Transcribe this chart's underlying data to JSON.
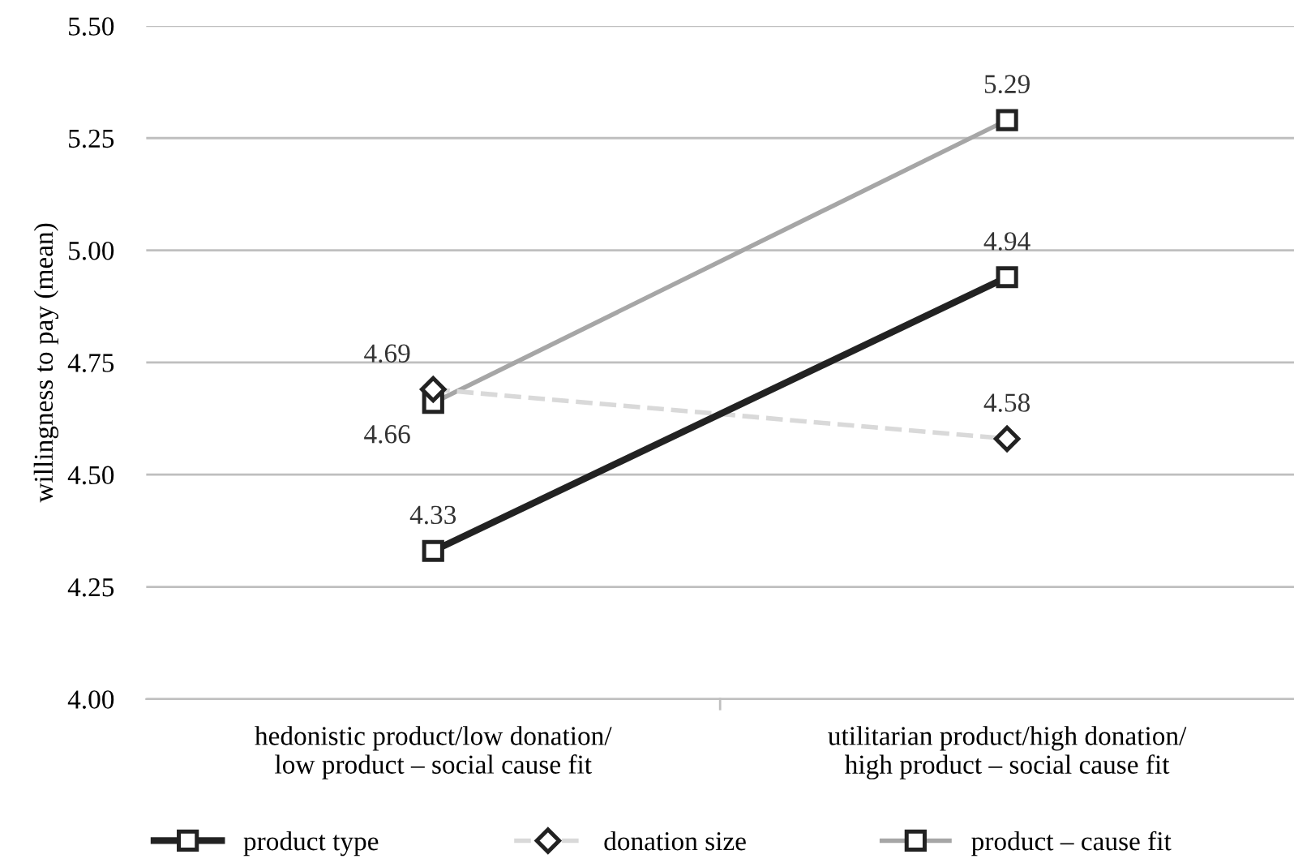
{
  "chart_data": {
    "type": "line",
    "ylabel": "willingness to pay (mean)",
    "categories": [
      "hedonistic product/low donation/\nlow product – social cause fit",
      "utilitarian product/high donation/\nhigh product – social cause fit"
    ],
    "series": [
      {
        "name": "product type",
        "color": "#222222",
        "values": [
          4.33,
          4.94
        ],
        "marker": "square",
        "line_style": "solid"
      },
      {
        "name": "donation size",
        "color": "#d9d9d9",
        "values": [
          4.69,
          4.58
        ],
        "marker": "diamond",
        "line_style": "dashed"
      },
      {
        "name": "product – cause fit",
        "color": "#a6a6a6",
        "values": [
          4.66,
          5.29
        ],
        "marker": "square",
        "line_style": "solid"
      }
    ],
    "ylim": [
      4.0,
      5.5
    ],
    "yticks": [
      {
        "value": 4.0,
        "label": "4.00"
      },
      {
        "value": 4.25,
        "label": "4.25"
      },
      {
        "value": 4.5,
        "label": "4.50"
      },
      {
        "value": 4.75,
        "label": "4.75"
      },
      {
        "value": 5.0,
        "label": "5.00"
      },
      {
        "value": 5.25,
        "label": "5.25"
      },
      {
        "value": 5.5,
        "label": "5.50"
      }
    ],
    "grid": "y",
    "legend": "bottom",
    "data_labels": true
  }
}
